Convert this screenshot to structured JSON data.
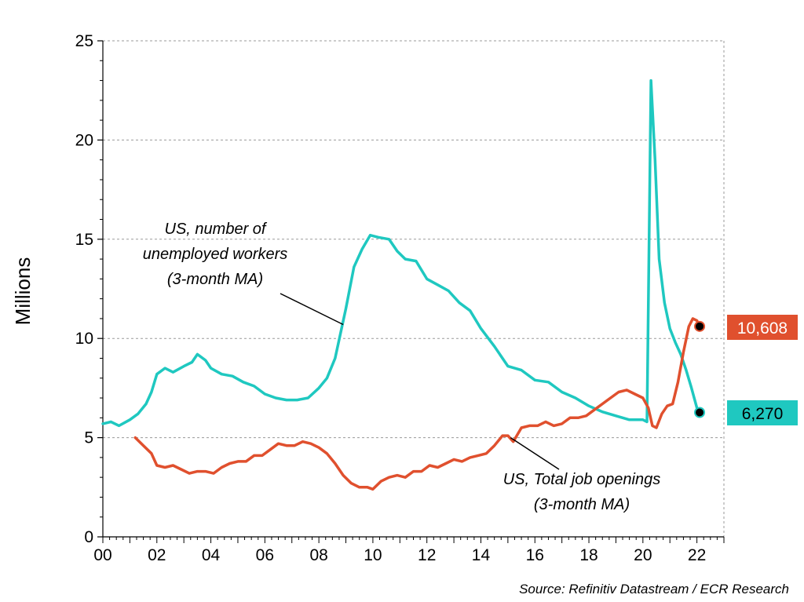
{
  "chart_data": {
    "type": "line",
    "ylabel": "Millions",
    "ylim": [
      0,
      25
    ],
    "yticks": [
      0,
      5,
      10,
      15,
      20,
      25
    ],
    "xlim": [
      2000,
      2023
    ],
    "xticks": [
      2000,
      2002,
      2004,
      2006,
      2008,
      2010,
      2012,
      2014,
      2016,
      2018,
      2020,
      2022
    ],
    "xtick_labels": [
      "00",
      "02",
      "04",
      "06",
      "08",
      "10",
      "12",
      "14",
      "16",
      "18",
      "20",
      "22"
    ],
    "grid": "horizontal dashed",
    "source": "Source: Refinitiv Datastream / ECR Research",
    "series": [
      {
        "color": "#1fc8c0",
        "annotation_lines": [
          "US, number of",
          "unemployed workers",
          "(3-month MA)"
        ],
        "end_label": "6,270",
        "points": [
          [
            2000.0,
            5.7
          ],
          [
            2000.3,
            5.8
          ],
          [
            2000.6,
            5.6
          ],
          [
            2001.0,
            5.9
          ],
          [
            2001.3,
            6.2
          ],
          [
            2001.6,
            6.7
          ],
          [
            2001.8,
            7.3
          ],
          [
            2002.0,
            8.2
          ],
          [
            2002.3,
            8.5
          ],
          [
            2002.6,
            8.3
          ],
          [
            2003.0,
            8.6
          ],
          [
            2003.3,
            8.8
          ],
          [
            2003.5,
            9.2
          ],
          [
            2003.8,
            8.9
          ],
          [
            2004.0,
            8.5
          ],
          [
            2004.4,
            8.2
          ],
          [
            2004.8,
            8.1
          ],
          [
            2005.2,
            7.8
          ],
          [
            2005.6,
            7.6
          ],
          [
            2006.0,
            7.2
          ],
          [
            2006.4,
            7.0
          ],
          [
            2006.8,
            6.9
          ],
          [
            2007.2,
            6.9
          ],
          [
            2007.6,
            7.0
          ],
          [
            2008.0,
            7.5
          ],
          [
            2008.3,
            8.0
          ],
          [
            2008.6,
            9.0
          ],
          [
            2009.0,
            11.5
          ],
          [
            2009.3,
            13.6
          ],
          [
            2009.6,
            14.5
          ],
          [
            2009.9,
            15.2
          ],
          [
            2010.2,
            15.1
          ],
          [
            2010.6,
            15.0
          ],
          [
            2010.9,
            14.4
          ],
          [
            2011.2,
            14.0
          ],
          [
            2011.6,
            13.9
          ],
          [
            2012.0,
            13.0
          ],
          [
            2012.4,
            12.7
          ],
          [
            2012.8,
            12.4
          ],
          [
            2013.2,
            11.8
          ],
          [
            2013.6,
            11.4
          ],
          [
            2014.0,
            10.5
          ],
          [
            2014.5,
            9.6
          ],
          [
            2015.0,
            8.6
          ],
          [
            2015.5,
            8.4
          ],
          [
            2016.0,
            7.9
          ],
          [
            2016.5,
            7.8
          ],
          [
            2017.0,
            7.3
          ],
          [
            2017.5,
            7.0
          ],
          [
            2018.0,
            6.6
          ],
          [
            2018.5,
            6.3
          ],
          [
            2019.0,
            6.1
          ],
          [
            2019.5,
            5.9
          ],
          [
            2020.0,
            5.9
          ],
          [
            2020.15,
            5.8
          ],
          [
            2020.3,
            23.0
          ],
          [
            2020.45,
            19.0
          ],
          [
            2020.6,
            14.0
          ],
          [
            2020.8,
            11.8
          ],
          [
            2021.0,
            10.5
          ],
          [
            2021.2,
            9.8
          ],
          [
            2021.4,
            9.2
          ],
          [
            2021.6,
            8.4
          ],
          [
            2021.8,
            7.5
          ],
          [
            2022.0,
            6.5
          ],
          [
            2022.1,
            6.27
          ]
        ]
      },
      {
        "color": "#e0502e",
        "annotation_lines": [
          "US, Total job openings",
          "(3-month MA)"
        ],
        "end_label": "10,608",
        "points": [
          [
            2001.2,
            5.0
          ],
          [
            2001.5,
            4.6
          ],
          [
            2001.8,
            4.2
          ],
          [
            2002.0,
            3.6
          ],
          [
            2002.3,
            3.5
          ],
          [
            2002.6,
            3.6
          ],
          [
            2002.9,
            3.4
          ],
          [
            2003.2,
            3.2
          ],
          [
            2003.5,
            3.3
          ],
          [
            2003.8,
            3.3
          ],
          [
            2004.1,
            3.2
          ],
          [
            2004.4,
            3.5
          ],
          [
            2004.7,
            3.7
          ],
          [
            2005.0,
            3.8
          ],
          [
            2005.3,
            3.8
          ],
          [
            2005.6,
            4.1
          ],
          [
            2005.9,
            4.1
          ],
          [
            2006.2,
            4.4
          ],
          [
            2006.5,
            4.7
          ],
          [
            2006.8,
            4.6
          ],
          [
            2007.1,
            4.6
          ],
          [
            2007.4,
            4.8
          ],
          [
            2007.7,
            4.7
          ],
          [
            2008.0,
            4.5
          ],
          [
            2008.3,
            4.2
          ],
          [
            2008.6,
            3.7
          ],
          [
            2008.9,
            3.1
          ],
          [
            2009.2,
            2.7
          ],
          [
            2009.5,
            2.5
          ],
          [
            2009.8,
            2.5
          ],
          [
            2010.0,
            2.4
          ],
          [
            2010.3,
            2.8
          ],
          [
            2010.6,
            3.0
          ],
          [
            2010.9,
            3.1
          ],
          [
            2011.2,
            3.0
          ],
          [
            2011.5,
            3.3
          ],
          [
            2011.8,
            3.3
          ],
          [
            2012.1,
            3.6
          ],
          [
            2012.4,
            3.5
          ],
          [
            2012.7,
            3.7
          ],
          [
            2013.0,
            3.9
          ],
          [
            2013.3,
            3.8
          ],
          [
            2013.6,
            4.0
          ],
          [
            2013.9,
            4.1
          ],
          [
            2014.2,
            4.2
          ],
          [
            2014.5,
            4.6
          ],
          [
            2014.8,
            5.1
          ],
          [
            2015.0,
            5.1
          ],
          [
            2015.2,
            4.8
          ],
          [
            2015.5,
            5.5
          ],
          [
            2015.8,
            5.6
          ],
          [
            2016.1,
            5.6
          ],
          [
            2016.4,
            5.8
          ],
          [
            2016.7,
            5.6
          ],
          [
            2017.0,
            5.7
          ],
          [
            2017.3,
            6.0
          ],
          [
            2017.6,
            6.0
          ],
          [
            2017.9,
            6.1
          ],
          [
            2018.2,
            6.4
          ],
          [
            2018.5,
            6.7
          ],
          [
            2018.8,
            7.0
          ],
          [
            2019.1,
            7.3
          ],
          [
            2019.4,
            7.4
          ],
          [
            2019.7,
            7.2
          ],
          [
            2020.0,
            7.0
          ],
          [
            2020.2,
            6.5
          ],
          [
            2020.35,
            5.6
          ],
          [
            2020.5,
            5.5
          ],
          [
            2020.7,
            6.2
          ],
          [
            2020.9,
            6.6
          ],
          [
            2021.1,
            6.7
          ],
          [
            2021.3,
            7.8
          ],
          [
            2021.5,
            9.3
          ],
          [
            2021.7,
            10.6
          ],
          [
            2021.85,
            11.0
          ],
          [
            2022.0,
            10.9
          ],
          [
            2022.1,
            10.608
          ]
        ]
      }
    ]
  }
}
